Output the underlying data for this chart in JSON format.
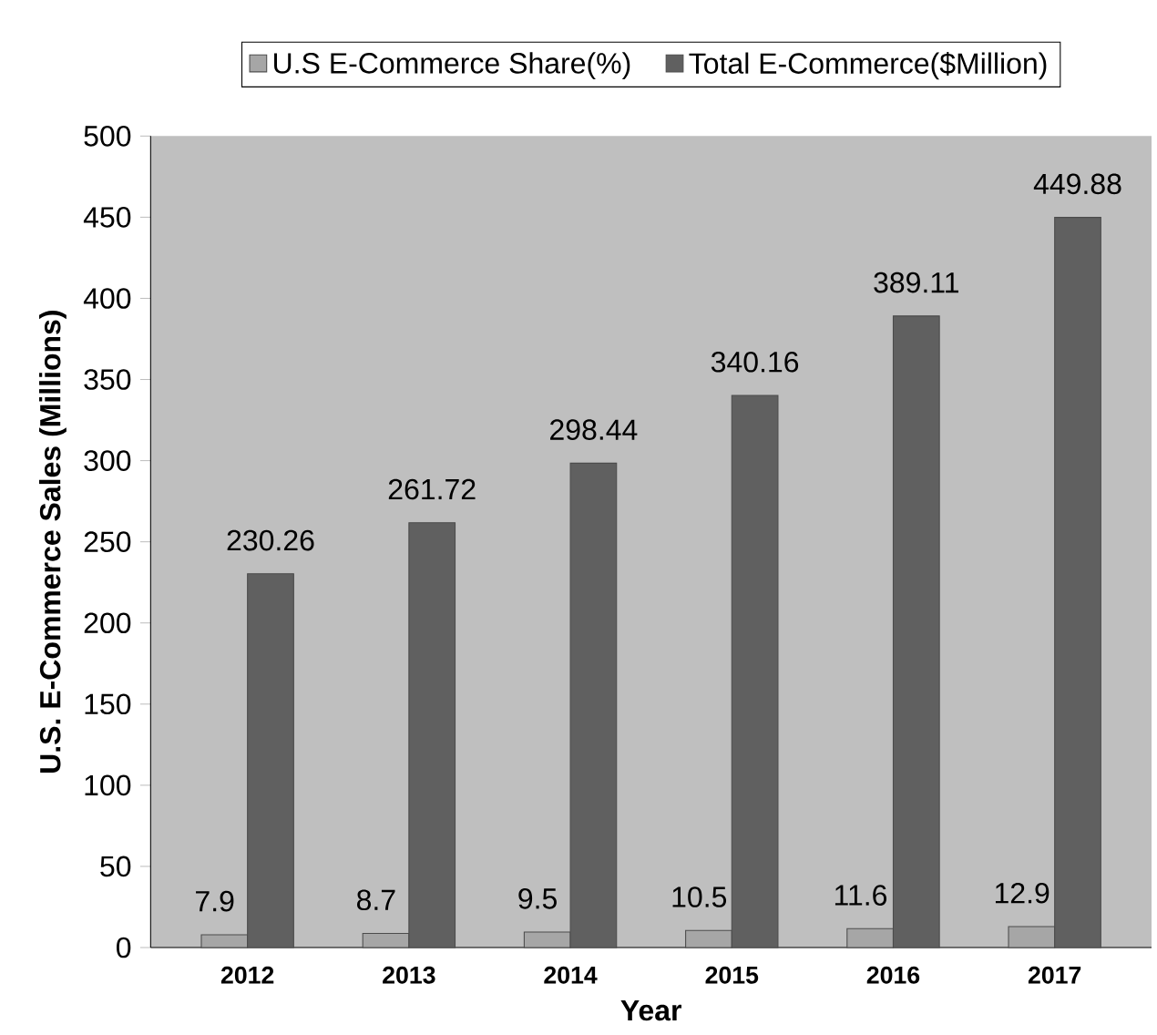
{
  "chart_data": {
    "type": "bar",
    "xlabel": "Year",
    "ylabel": "U.S. E-Commerce Sales (Millions)",
    "categories": [
      "2012",
      "2013",
      "2014",
      "2015",
      "2016",
      "2017"
    ],
    "series": [
      {
        "name": "U.S E-Commerce Share(%)",
        "color": "#a6a6a6",
        "values": [
          7.9,
          8.7,
          9.5,
          10.5,
          11.6,
          12.9
        ]
      },
      {
        "name": "Total E-Commerce($Million)",
        "color": "#606060",
        "values": [
          230.26,
          261.72,
          298.44,
          340.16,
          389.11,
          449.88
        ]
      }
    ],
    "ylim": [
      0,
      500
    ],
    "yticks": [
      0,
      50,
      100,
      150,
      200,
      250,
      300,
      350,
      400,
      450,
      500
    ],
    "data_labels": true,
    "legend": "top",
    "grid": false
  }
}
